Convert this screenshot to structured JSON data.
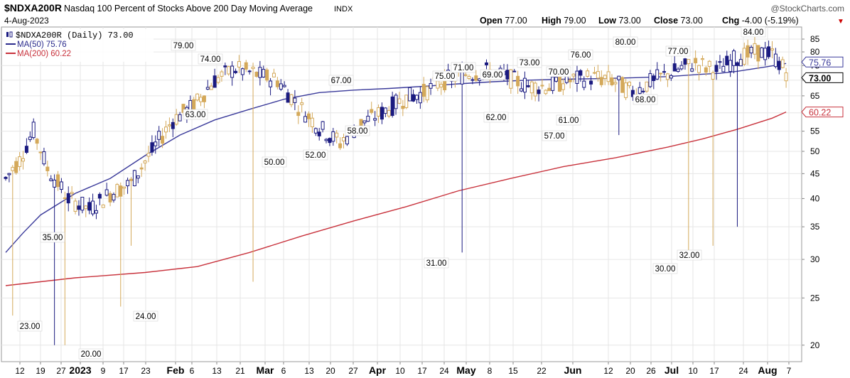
{
  "header": {
    "symbol": "$NDXA200R",
    "name": "Nasdaq 100 Percent of Stocks Above 200 Day Moving Average",
    "exchange": "INDX",
    "date": "4-Aug-2023",
    "watermark": "@StockCharts.com",
    "ohlc": [
      {
        "label": "Open",
        "value": "77.00"
      },
      {
        "label": "High",
        "value": "79.00"
      },
      {
        "label": "Low",
        "value": "73.00"
      },
      {
        "label": "Close",
        "value": "73.00"
      },
      {
        "label": "Chg",
        "value": "-4.00 (-5.19%)"
      }
    ],
    "chg_arrow": "▼"
  },
  "legend": [
    {
      "text": "$NDXA200R (Daily) 73.00",
      "color": "#000000",
      "kind": "candle"
    },
    {
      "text": "MA(50) 75.76",
      "color": "#2b2b8c",
      "kind": "line"
    },
    {
      "text": "MA(200) 60.22",
      "color": "#c8323c",
      "kind": "line"
    }
  ],
  "colors": {
    "up": "#1a1a80",
    "down": "#d4a95a",
    "ma50": "#3a3a9a",
    "ma200": "#c8323c",
    "grid": "#e6e6e6"
  },
  "chart_data": {
    "type": "candlestick",
    "scale": "log",
    "ylim": [
      18.5,
      90
    ],
    "y_ticks": [
      20,
      25,
      30,
      35,
      40,
      45,
      50,
      55,
      60,
      65,
      70,
      75,
      80,
      85
    ],
    "x_labels": [
      "12",
      "19",
      "27",
      "2023",
      "9",
      "17",
      "23",
      "Feb",
      "6",
      "13",
      "21",
      "Mar",
      "6",
      "13",
      "20",
      "27",
      "Apr",
      "10",
      "17",
      "24",
      "May",
      "8",
      "15",
      "22",
      "Jun",
      "12",
      "20",
      "26",
      "Jul",
      "10",
      "17",
      "24",
      "Aug",
      "7"
    ],
    "x_label_bold": [
      "2023",
      "Feb",
      "Mar",
      "Apr",
      "May",
      "Jun",
      "Jul",
      "Aug"
    ],
    "last_values": [
      {
        "value": "75.76",
        "series": "ma50"
      },
      {
        "value": "73.00",
        "series": "price"
      },
      {
        "value": "60.22",
        "series": "ma200"
      }
    ],
    "annotations": [
      "79.00",
      "74.00",
      "63.00",
      "67.00",
      "75.00",
      "71.00",
      "69.00",
      "73.00",
      "70.00",
      "76.00",
      "80.00",
      "77.00",
      "84.00",
      "35.00",
      "23.00",
      "20.00",
      "24.00",
      "50.00",
      "52.00",
      "58.00",
      "31.00",
      "62.00",
      "57.00",
      "61.00",
      "68.00",
      "30.00",
      "32.00"
    ],
    "ma50_points": [
      [
        0,
        31
      ],
      [
        5,
        34
      ],
      [
        10,
        37
      ],
      [
        20,
        41
      ],
      [
        30,
        44
      ],
      [
        40,
        49
      ],
      [
        50,
        54
      ],
      [
        60,
        58
      ],
      [
        70,
        61
      ],
      [
        80,
        64
      ],
      [
        90,
        66
      ],
      [
        100,
        66.8
      ],
      [
        110,
        67.3
      ],
      [
        120,
        68
      ],
      [
        130,
        68.8
      ],
      [
        140,
        69.5
      ],
      [
        150,
        70
      ],
      [
        160,
        70.3
      ],
      [
        170,
        70.5
      ],
      [
        180,
        70.8
      ],
      [
        190,
        71.2
      ],
      [
        200,
        72
      ],
      [
        205,
        72.3
      ],
      [
        210,
        73
      ],
      [
        218,
        74.5
      ],
      [
        224,
        75.76
      ]
    ],
    "ma200_points": [
      [
        0,
        26.5
      ],
      [
        20,
        27.5
      ],
      [
        40,
        28.2
      ],
      [
        55,
        29
      ],
      [
        70,
        31
      ],
      [
        85,
        33.5
      ],
      [
        100,
        36
      ],
      [
        115,
        38.5
      ],
      [
        130,
        41.5
      ],
      [
        145,
        44
      ],
      [
        160,
        46.5
      ],
      [
        175,
        48.5
      ],
      [
        190,
        51
      ],
      [
        200,
        53
      ],
      [
        210,
        55.5
      ],
      [
        220,
        58.5
      ],
      [
        224,
        60.22
      ]
    ]
  }
}
